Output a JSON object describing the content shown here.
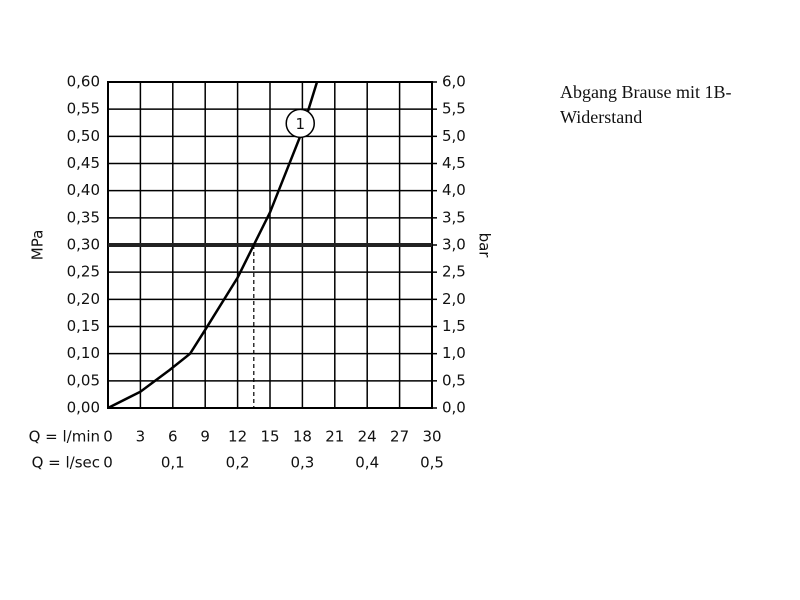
{
  "chart_data": {
    "type": "line",
    "title": "Abgang Brause mit 1B-Widerstand",
    "x_label": "Q = l/min",
    "x2_label": "Q = l/sec",
    "y_label": "MPa",
    "y2_label": "bar",
    "series": [
      {
        "name": "1",
        "color": "#000000",
        "x": [
          0,
          3,
          5.7,
          7.6,
          9,
          12,
          13.5,
          15,
          17.8,
          19.35
        ],
        "values": [
          0,
          0.03,
          0.07,
          0.1,
          0.144,
          0.24,
          0.3,
          0.36,
          0.5,
          0.6
        ]
      }
    ],
    "reference_line": 0.3,
    "reference_x": 13.5,
    "xlim": [
      0,
      30
    ],
    "xticks": [
      0,
      3,
      6,
      9,
      12,
      15,
      18,
      21,
      24,
      27,
      30
    ],
    "x2lim": [
      0,
      0.5
    ],
    "x2ticks": [
      0,
      {
        "value": 0.1,
        "label": "0,1"
      },
      {
        "value": 0.2,
        "label": "0,2"
      },
      {
        "value": 0.3,
        "label": "0,3"
      },
      {
        "value": 0.4,
        "label": "0,4"
      },
      {
        "value": 0.5,
        "label": "0,5"
      }
    ],
    "ylim": [
      0,
      0.6
    ],
    "yticks": [
      {
        "value": 0,
        "label": "0,00"
      },
      {
        "value": 0.05,
        "label": "0,05"
      },
      {
        "value": 0.1,
        "label": "0,10"
      },
      {
        "value": 0.15,
        "label": "0,15"
      },
      {
        "value": 0.2,
        "label": "0,20"
      },
      {
        "value": 0.25,
        "label": "0,25"
      },
      {
        "value": 0.3,
        "label": "0,30"
      },
      {
        "value": 0.35,
        "label": "0,35"
      },
      {
        "value": 0.4,
        "label": "0,40"
      },
      {
        "value": 0.45,
        "label": "0,45"
      },
      {
        "value": 0.5,
        "label": "0,50"
      },
      {
        "value": 0.55,
        "label": "0,55"
      },
      {
        "value": 0.6,
        "label": "0,60"
      }
    ],
    "y2lim": [
      0,
      6
    ],
    "y2ticks": [
      {
        "value": 0,
        "label": "0,0"
      },
      {
        "value": 0.5,
        "label": "0,5"
      },
      {
        "value": 1,
        "label": "1,0"
      },
      {
        "value": 1.5,
        "label": "1,5"
      },
      {
        "value": 2,
        "label": "2,0"
      },
      {
        "value": 2.5,
        "label": "2,5"
      },
      {
        "value": 3,
        "label": "3,0"
      },
      {
        "value": 3.5,
        "label": "3,5"
      },
      {
        "value": 4,
        "label": "4,0"
      },
      {
        "value": 4.5,
        "label": "4,5"
      },
      {
        "value": 5,
        "label": "5,0"
      },
      {
        "value": 5.5,
        "label": "5,5"
      },
      {
        "value": 6,
        "label": "6,0"
      }
    ],
    "grid": true
  }
}
